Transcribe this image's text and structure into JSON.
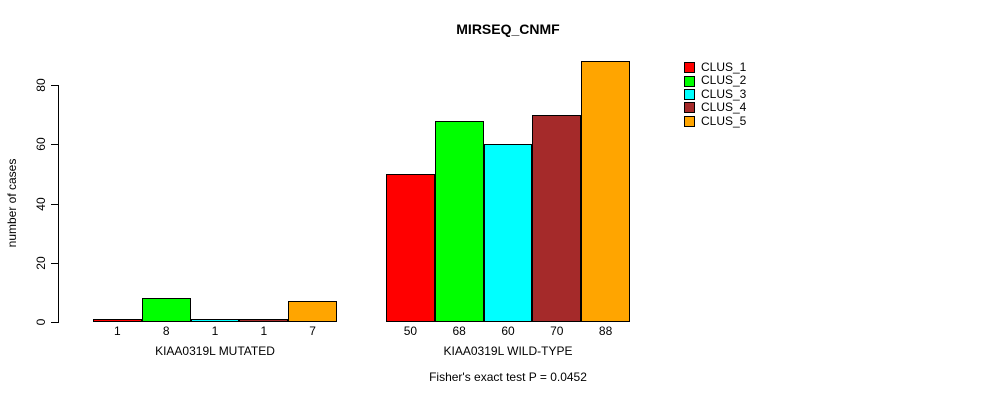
{
  "chart_data": {
    "type": "bar",
    "title": "MIRSEQ_CNMF",
    "ylabel": "number of cases",
    "yticks": [
      0,
      20,
      40,
      60,
      80
    ],
    "ylim": [
      0,
      88
    ],
    "grid": false,
    "legend_position": "right",
    "series": [
      {
        "name": "CLUS_1",
        "color": "#FF0000"
      },
      {
        "name": "CLUS_2",
        "color": "#00FF00"
      },
      {
        "name": "CLUS_3",
        "color": "#00FFFF"
      },
      {
        "name": "CLUS_4",
        "color": "#A52A2A"
      },
      {
        "name": "CLUS_5",
        "color": "#FFA500"
      }
    ],
    "groups": [
      {
        "label": "KIAA0319L MUTATED",
        "values": [
          1,
          8,
          1,
          1,
          7
        ]
      },
      {
        "label": "KIAA0319L WILD-TYPE",
        "values": [
          50,
          68,
          60,
          70,
          88
        ]
      }
    ],
    "annotation": "Fisher's exact test P = 0.0452",
    "bar_border_color": "#000000"
  }
}
